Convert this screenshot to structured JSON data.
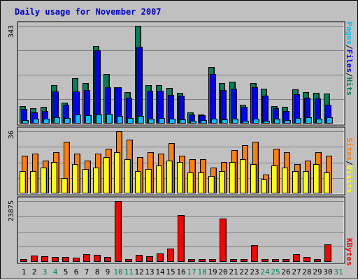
{
  "title": "Daily usage for November 2007",
  "colors": {
    "hits": "#00805c",
    "files": "#0000ff",
    "pages": "#00c0ff",
    "visits": "#ffff00",
    "sites": "#ff8000",
    "kbytes": "#ff0000",
    "weekend_day": "#00805c",
    "weekday_day": "#000000",
    "grid": "#808080",
    "background": "#c0c0c0"
  },
  "chart_data": [
    {
      "type": "bar",
      "title": "Daily usage for November 2007",
      "categories": [
        "1",
        "2",
        "3",
        "4",
        "5",
        "6",
        "7",
        "8",
        "9",
        "10",
        "11",
        "12",
        "13",
        "14",
        "15",
        "16",
        "17",
        "18",
        "19",
        "20",
        "21",
        "22",
        "23",
        "24",
        "25",
        "26",
        "27",
        "28",
        "29",
        "30",
        "31"
      ],
      "ytick": "343",
      "ylim": [
        0,
        343
      ],
      "grid": true,
      "legend_labels": [
        "Pages",
        "/",
        "Files",
        "/",
        "Hits"
      ],
      "series": [
        {
          "name": "Hits",
          "values": [
            62,
            55,
            60,
            135,
            73,
            160,
            142,
            273,
            175,
            127,
            110,
            343,
            135,
            135,
            125,
            108,
            38,
            33,
            198,
            142,
            147,
            67,
            142,
            123,
            62,
            60,
            120,
            110,
            107,
            105,
            0
          ]
        },
        {
          "name": "Files",
          "values": [
            52,
            40,
            45,
            113,
            65,
            112,
            117,
            257,
            127,
            127,
            90,
            270,
            115,
            115,
            100,
            97,
            33,
            30,
            173,
            117,
            122,
            60,
            127,
            98,
            55,
            45,
            102,
            90,
            87,
            67,
            0
          ]
        },
        {
          "name": "Pages",
          "values": [
            12,
            17,
            17,
            22,
            20,
            32,
            30,
            32,
            35,
            27,
            20,
            27,
            17,
            20,
            17,
            15,
            10,
            12,
            17,
            15,
            17,
            10,
            17,
            10,
            17,
            12,
            20,
            22,
            17,
            22,
            0
          ]
        }
      ]
    },
    {
      "type": "bar",
      "categories": [
        "1",
        "2",
        "3",
        "4",
        "5",
        "6",
        "7",
        "8",
        "9",
        "10",
        "11",
        "12",
        "13",
        "14",
        "15",
        "16",
        "17",
        "18",
        "19",
        "20",
        "21",
        "22",
        "23",
        "24",
        "25",
        "26",
        "27",
        "28",
        "29",
        "30",
        "31"
      ],
      "ytick": "36",
      "ylim": [
        0,
        36
      ],
      "grid": true,
      "legend_labels": [
        "Sites",
        "/",
        "Visits"
      ],
      "series": [
        {
          "name": "Sites",
          "values": [
            22,
            23,
            19,
            24,
            30,
            23,
            19,
            23,
            26,
            36,
            31,
            21,
            24,
            23,
            29,
            22,
            20,
            20,
            15,
            18,
            25,
            28,
            30,
            11,
            26,
            24,
            17,
            19,
            24,
            22,
            0
          ]
        },
        {
          "name": "Visits",
          "values": [
            13,
            13,
            15,
            18,
            9,
            17,
            14,
            15,
            21,
            24,
            20,
            13,
            14,
            16,
            19,
            18,
            12,
            12,
            10,
            13,
            18,
            20,
            17,
            8,
            16,
            15,
            13,
            13,
            17,
            12,
            0
          ]
        }
      ]
    },
    {
      "type": "bar",
      "categories": [
        "1",
        "2",
        "3",
        "4",
        "5",
        "6",
        "7",
        "8",
        "9",
        "10",
        "11",
        "12",
        "13",
        "14",
        "15",
        "16",
        "17",
        "18",
        "19",
        "20",
        "21",
        "22",
        "23",
        "24",
        "25",
        "26",
        "27",
        "28",
        "29",
        "30",
        "31"
      ],
      "ytick": "23875",
      "ylim": [
        0,
        23875
      ],
      "grid": true,
      "legend_labels": [
        "KBytes"
      ],
      "series": [
        {
          "name": "KBytes",
          "values": [
            1200,
            2500,
            2200,
            2000,
            1800,
            1600,
            3100,
            2800,
            1800,
            23875,
            1000,
            2700,
            2100,
            3300,
            5300,
            18500,
            1000,
            1000,
            1000,
            17100,
            1000,
            1000,
            6500,
            1000,
            1000,
            1000,
            2900,
            2000,
            1000,
            6800,
            0
          ]
        }
      ]
    }
  ],
  "weekend_days": [
    "3",
    "4",
    "10",
    "11",
    "17",
    "18",
    "24",
    "25",
    "31"
  ]
}
